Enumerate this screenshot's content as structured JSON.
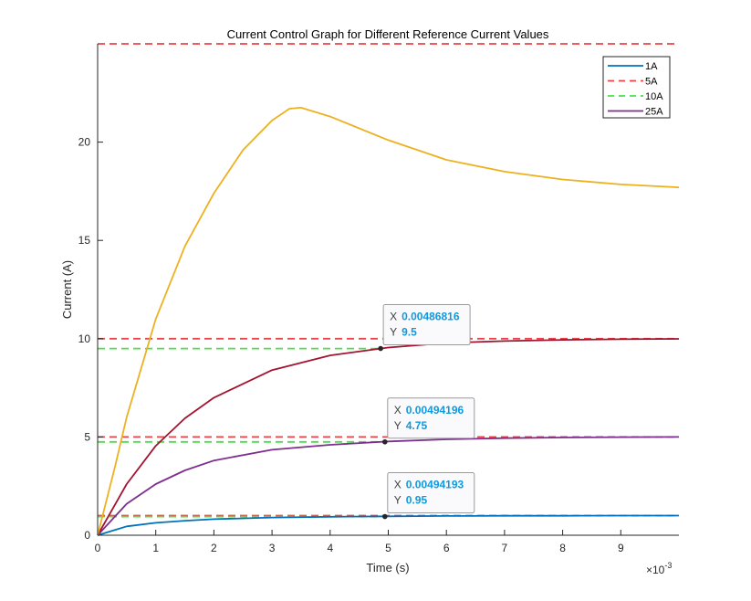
{
  "chart_data": {
    "type": "line",
    "title": "Current Control Graph for Different Reference Current Values",
    "xlabel": "Time (s)",
    "ylabel": "Current (A)",
    "x_exponent_label": "×10",
    "x_exponent_power": "-3",
    "xlim": [
      0,
      0.01
    ],
    "ylim": [
      0,
      25
    ],
    "x_ticks": [
      0,
      0.001,
      0.002,
      0.003,
      0.004,
      0.005,
      0.006,
      0.007,
      0.008,
      0.009
    ],
    "x_tick_labels": [
      "0",
      "1",
      "2",
      "3",
      "4",
      "5",
      "6",
      "7",
      "8",
      "9"
    ],
    "y_ticks": [
      0,
      5,
      10,
      15,
      20
    ],
    "y_tick_labels": [
      "0",
      "5",
      "10",
      "15",
      "20"
    ],
    "grid": false,
    "legend_position": "top-right",
    "legend": [
      {
        "name": "1A",
        "color": "#0072bd",
        "dash": "solid"
      },
      {
        "name": "5A",
        "color": "#e8454a",
        "dash": "dashed"
      },
      {
        "name": "10A",
        "color": "#4fdc4f",
        "dash": "dashed"
      },
      {
        "name": "25A",
        "color": "#7e2f8e",
        "dash": "solid"
      }
    ],
    "series": [
      {
        "name": "1A",
        "color": "#0072bd",
        "dash": "solid",
        "x": [
          0,
          0.0005,
          0.001,
          0.0015,
          0.002,
          0.003,
          0.004,
          0.005,
          0.006,
          0.007,
          0.008,
          0.009,
          0.01
        ],
        "y": [
          0,
          0.45,
          0.63,
          0.74,
          0.82,
          0.9,
          0.94,
          0.96,
          0.98,
          0.99,
          0.99,
          1.0,
          1.0
        ]
      },
      {
        "color": "#7e2f8e",
        "dash": "solid",
        "x": [
          0,
          0.0005,
          0.001,
          0.0015,
          0.002,
          0.003,
          0.004,
          0.005,
          0.006,
          0.007,
          0.008,
          0.009,
          0.01
        ],
        "y": [
          0,
          1.6,
          2.6,
          3.3,
          3.8,
          4.35,
          4.6,
          4.77,
          4.88,
          4.94,
          4.97,
          4.99,
          5.0
        ]
      },
      {
        "color": "#a2142f",
        "dash": "solid",
        "x": [
          0,
          0.0005,
          0.001,
          0.0015,
          0.002,
          0.003,
          0.004,
          0.005,
          0.006,
          0.007,
          0.008,
          0.009,
          0.01
        ],
        "y": [
          0,
          2.6,
          4.55,
          5.95,
          7.0,
          8.4,
          9.15,
          9.55,
          9.78,
          9.88,
          9.94,
          9.97,
          9.99
        ]
      },
      {
        "color": "#edb120",
        "dash": "solid",
        "x": [
          0,
          0.0003,
          0.0005,
          0.001,
          0.0015,
          0.002,
          0.0025,
          0.003,
          0.0033,
          0.0035,
          0.004,
          0.005,
          0.006,
          0.007,
          0.008,
          0.009,
          0.01
        ],
        "y": [
          0,
          3.5,
          6.0,
          11.0,
          14.7,
          17.4,
          19.6,
          21.1,
          21.7,
          21.75,
          21.3,
          20.1,
          19.1,
          18.5,
          18.1,
          17.85,
          17.7
        ]
      },
      {
        "color": "#e8454a",
        "dash": "dashed",
        "x": [
          0,
          0.01
        ],
        "y": [
          1,
          1
        ]
      },
      {
        "color": "#e8454a",
        "dash": "dashed",
        "x": [
          0,
          0.01
        ],
        "y": [
          5,
          5
        ]
      },
      {
        "color": "#e8454a",
        "dash": "dashed",
        "x": [
          0,
          0.01
        ],
        "y": [
          10,
          10
        ]
      },
      {
        "color": "#e8454a",
        "dash": "dashed",
        "x": [
          0,
          0.01
        ],
        "y": [
          25,
          25
        ]
      },
      {
        "color": "#4fdc4f",
        "dash": "dashed",
        "x": [
          0,
          0.00494
        ],
        "y": [
          0.95,
          0.95
        ]
      },
      {
        "color": "#4fdc4f",
        "dash": "dashed",
        "x": [
          0,
          0.00494
        ],
        "y": [
          4.75,
          4.75
        ]
      },
      {
        "color": "#4fdc4f",
        "dash": "dashed",
        "x": [
          0,
          0.00487
        ],
        "y": [
          9.5,
          9.5
        ]
      }
    ],
    "datatips": [
      {
        "x_key": "X",
        "y_key": "Y",
        "x_text": "0.00486816",
        "y_text": "9.5",
        "x": 0.00486816,
        "y": 9.5
      },
      {
        "x_key": "X",
        "y_key": "Y",
        "x_text": "0.00494196",
        "y_text": "4.75",
        "x": 0.00494196,
        "y": 4.75
      },
      {
        "x_key": "X",
        "y_key": "Y",
        "x_text": "0.00494193",
        "y_text": "0.95",
        "x": 0.00494193,
        "y": 0.95
      }
    ]
  }
}
